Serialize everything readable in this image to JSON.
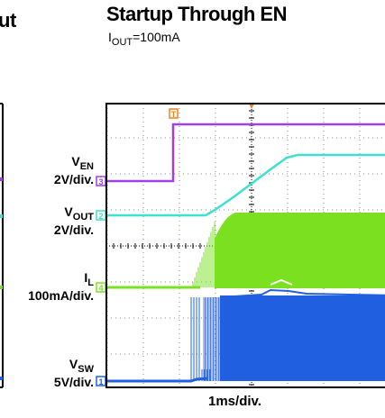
{
  "left_panel": {
    "title_fragment": "ut"
  },
  "chart_data": {
    "type": "line",
    "title": "Startup Through EN",
    "subtitle_main": "I",
    "subtitle_sub": "OUT",
    "subtitle_rest": "=100mA",
    "xlabel": "1ms/div.",
    "x_divisions": 10,
    "y_divisions": 8,
    "grid": true,
    "series": [
      {
        "name": "VEN",
        "label_main": "V",
        "label_sub": "EN",
        "scale": "2V/div.",
        "channel": "3",
        "color": "#a040e0"
      },
      {
        "name": "VOUT",
        "label_main": "V",
        "label_sub": "OUT",
        "scale": "2V/div.",
        "channel": "2",
        "color": "#3ee0d0"
      },
      {
        "name": "IL",
        "label_main": "I",
        "label_sub": "L",
        "scale": "100mA/div.",
        "channel": "4",
        "color": "#7ae020"
      },
      {
        "name": "VSW",
        "label_main": "V",
        "label_sub": "SW",
        "scale": "5V/div.",
        "channel": "1",
        "color": "#2060e0"
      }
    ],
    "trigger_marker": "T"
  }
}
